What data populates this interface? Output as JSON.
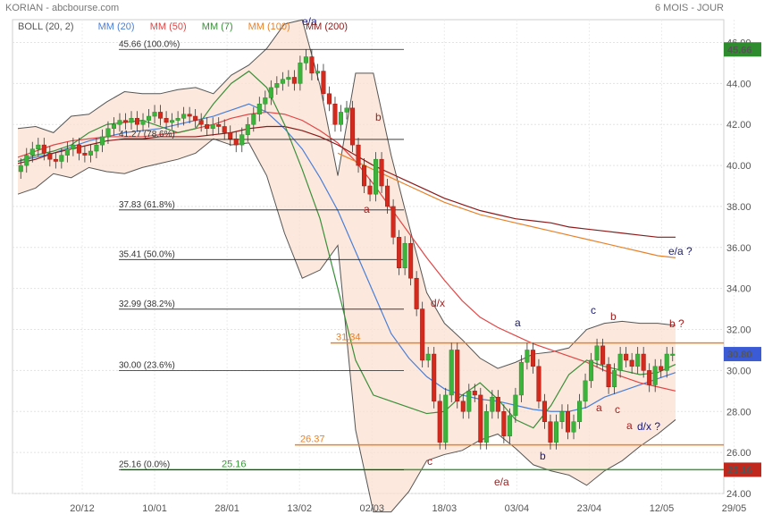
{
  "header": {
    "title": "KORIAN - abcbourse.com",
    "period": "6 MOIS - JOUR"
  },
  "indicators": [
    {
      "label": "BOLL (20, 2)",
      "color": "#555555"
    },
    {
      "label": "MM (20)",
      "color": "#4a7fd8"
    },
    {
      "label": "MM (50)",
      "color": "#e04646"
    },
    {
      "label": "MM (7)",
      "color": "#3a8f3a"
    },
    {
      "label": "MM (100)",
      "color": "#e8822a"
    },
    {
      "label": "MM (200)",
      "color": "#8b1a1a"
    }
  ],
  "chart_data": {
    "type": "candlestick",
    "x_labels": [
      "20/12",
      "10/01",
      "28/01",
      "13/02",
      "02/03",
      "18/03",
      "03/04",
      "23/04",
      "12/05",
      "29/05"
    ],
    "ylim": [
      24,
      46.5
    ],
    "y_ticks": [
      "24.00",
      "26.00",
      "28.00",
      "30.00",
      "32.00",
      "34.00",
      "36.00",
      "38.00",
      "40.00",
      "42.00",
      "44.00",
      "46.00"
    ],
    "closes": [
      40.0,
      40.5,
      40.8,
      41.0,
      40.6,
      40.3,
      40.2,
      40.5,
      40.8,
      41.0,
      40.6,
      40.5,
      40.7,
      41.0,
      41.4,
      41.8,
      42.0,
      42.2,
      42.1,
      42.3,
      42.0,
      42.2,
      42.4,
      42.6,
      42.3,
      42.1,
      42.2,
      42.3,
      42.5,
      42.4,
      42.2,
      42.0,
      41.8,
      42.0,
      41.9,
      41.6,
      41.3,
      41.0,
      41.5,
      42.0,
      42.5,
      43.0,
      43.3,
      43.8,
      44.0,
      44.2,
      44.3,
      44.0,
      45.0,
      45.3,
      44.5,
      44.6,
      43.5,
      43.0,
      42.0,
      42.6,
      42.8,
      41.0,
      40.0,
      39.0,
      38.6,
      40.3,
      39.0,
      38.0,
      36.5,
      35.0,
      36.2,
      34.5,
      33.0,
      30.5,
      30.8,
      28.5,
      26.5,
      28.8,
      31.0,
      28.5,
      28.0,
      29.0,
      28.8,
      26.5,
      28.0,
      28.7,
      28.0,
      26.8,
      27.8,
      28.8,
      30.4,
      31.0,
      30.2,
      28.5,
      27.5,
      26.5,
      27.5,
      28.0,
      27.0,
      27.5,
      28.5,
      29.5,
      30.5,
      31.2,
      30.3,
      29.2,
      30.0,
      30.8,
      30.5,
      30.2,
      30.8,
      30.0,
      29.3,
      30.2,
      30.0,
      30.8,
      30.8
    ],
    "series": [
      {
        "name": "MM (20)",
        "color": "#4a7fd8",
        "values": [
          40.2,
          40.4,
          40.6,
          40.9,
          41.2,
          41.4,
          41.6,
          41.7,
          41.8,
          42.0,
          42.2,
          42.4,
          42.7,
          43.0,
          42.6,
          41.8,
          40.8,
          39.4,
          37.8,
          35.8,
          33.8,
          31.8,
          30.6,
          29.7,
          29.1,
          28.8,
          28.6,
          28.5,
          28.3,
          28.1,
          28.0,
          28.0,
          28.2,
          28.7,
          29.0,
          29.3,
          29.6,
          29.9
        ]
      },
      {
        "name": "MM (50)",
        "color": "#e04646",
        "values": [
          40.4,
          40.7,
          41.0,
          41.2,
          41.3,
          41.4,
          41.4,
          41.4,
          41.5,
          41.6,
          41.8,
          42.0,
          42.3,
          42.5,
          42.6,
          42.5,
          42.2,
          41.7,
          41.1,
          40.2,
          39.1,
          37.9,
          36.7,
          35.5,
          34.4,
          33.4,
          32.6,
          32.1,
          31.7,
          31.3,
          31.0,
          30.7,
          30.4,
          30.0,
          29.7,
          29.4,
          29.2,
          29.0
        ]
      },
      {
        "name": "MM (100)",
        "color": "#e8822a",
        "values": [
          null,
          null,
          null,
          null,
          null,
          null,
          null,
          null,
          null,
          null,
          null,
          null,
          null,
          null,
          null,
          null,
          null,
          null,
          40.6,
          40.2,
          39.8,
          39.4,
          39.0,
          38.6,
          38.2,
          37.9,
          37.6,
          37.4,
          37.2,
          37.0,
          36.8,
          36.6,
          36.4,
          36.2,
          36.0,
          35.8,
          35.6,
          35.5
        ]
      },
      {
        "name": "MM (200)",
        "color": "#8b1a1a",
        "values": [
          40.1,
          40.3,
          40.6,
          40.8,
          41.0,
          41.2,
          41.3,
          41.3,
          41.4,
          41.4,
          41.4,
          41.5,
          41.6,
          41.8,
          41.9,
          41.9,
          41.7,
          41.4,
          41.0,
          40.5,
          40.0,
          39.6,
          39.2,
          38.8,
          38.4,
          38.1,
          37.8,
          37.6,
          37.4,
          37.3,
          37.2,
          37.0,
          36.9,
          36.8,
          36.7,
          36.6,
          36.5,
          36.5
        ]
      },
      {
        "name": "MM (7)",
        "color": "#3a8f3a",
        "values": [
          40.2,
          40.5,
          40.7,
          41.0,
          41.6,
          42.0,
          42.1,
          42.2,
          41.9,
          41.6,
          41.8,
          43.0,
          44.0,
          44.6,
          43.8,
          42.0,
          39.8,
          37.4,
          34.0,
          30.5,
          28.8,
          28.5,
          28.2,
          27.9,
          28.0,
          28.8,
          29.4,
          28.6,
          27.6,
          27.2,
          28.3,
          29.8,
          30.5,
          30.2,
          30.0,
          29.8,
          29.9,
          30.3
        ]
      },
      {
        "name": "BOLL (20, 2)",
        "color": "#555555",
        "values": [
          39.5,
          39.8,
          40.5,
          41.5,
          40.8,
          40.6,
          40.5,
          40.8,
          41.0,
          41.2,
          41.5,
          42.2,
          43.5,
          44.0,
          44.8,
          46.0,
          46.2,
          43.0,
          37.0,
          28.0,
          24.0,
          24.0,
          25.0,
          26.5,
          26.8,
          27.0,
          27.5,
          27.8,
          29.5,
          29.9,
          30.0,
          30.2,
          31.1,
          31.4,
          31.5,
          31.4,
          31.4,
          31.3
        ]
      }
    ],
    "horizontal_levels": [
      {
        "label": "31.34",
        "value": 31.34,
        "color": "#f08020"
      },
      {
        "label": "26.37",
        "value": 26.37,
        "color": "#f08020"
      },
      {
        "label": "25.16",
        "value": 25.16,
        "color": "#3a9a3a"
      }
    ],
    "fibonacci": [
      {
        "label": "45.66 (100.0%)",
        "value": 45.66
      },
      {
        "label": "41.27 (78.6%)",
        "value": 41.27
      },
      {
        "label": "37.83 (61.8%)",
        "value": 37.83
      },
      {
        "label": "35.41 (50.0%)",
        "value": 35.41
      },
      {
        "label": "32.99 (38.2%)",
        "value": 32.99
      },
      {
        "label": "30.00 (23.6%)",
        "value": 30.0
      },
      {
        "label": "25.16 (0.0%)",
        "value": 25.16
      }
    ],
    "price_badges": [
      {
        "label": "45.66",
        "value": 45.66,
        "color": "#2e8b2e"
      },
      {
        "label": "30.80",
        "value": 30.8,
        "color": "#3b5bd6"
      },
      {
        "label": "25.16",
        "value": 25.16,
        "color": "#c0281e"
      }
    ],
    "annotations": [
      {
        "text": "e/a",
        "color": "#1a1a80"
      },
      {
        "text": "b",
        "color": "#a02020"
      },
      {
        "text": "a",
        "color": "#a02020"
      },
      {
        "text": "d/x",
        "color": "#a02020"
      },
      {
        "text": "c",
        "color": "#a02020"
      },
      {
        "text": "e/a",
        "color": "#a02020"
      },
      {
        "text": "a",
        "color": "#1a1a80"
      },
      {
        "text": "b",
        "color": "#1a1a80"
      },
      {
        "text": "c",
        "color": "#1a1a80"
      },
      {
        "text": "b",
        "color": "#a02020"
      },
      {
        "text": "a",
        "color": "#a02020"
      },
      {
        "text": "c",
        "color": "#a02020"
      },
      {
        "text": "a",
        "color": "#a02020"
      },
      {
        "text": "d/x ?",
        "color": "#1a1a80"
      },
      {
        "text": "b ?",
        "color": "#a02020"
      },
      {
        "text": "e/a ?",
        "color": "#1a1a80"
      }
    ],
    "grid": true
  }
}
